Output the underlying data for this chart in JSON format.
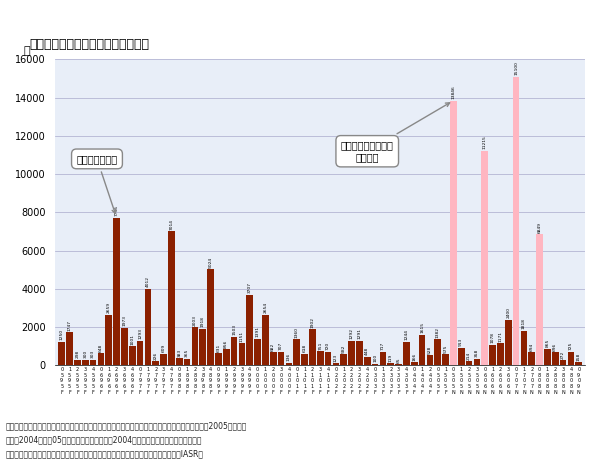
{
  "title": "インフルエンザによる死亡数の推移",
  "ylabel": "人",
  "ylim": [
    0,
    16000
  ],
  "yticks": [
    0,
    2000,
    4000,
    6000,
    8000,
    10000,
    12000,
    14000,
    16000
  ],
  "bar_color_brown": "#8B2000",
  "bar_color_pink": "#FFB6C1",
  "background_color": "#E8EEF8",
  "grid_color": "#AAAACC",
  "note1": "（注）死因別死亡者数は暦年、超過死亡はシーズン年度と時期がずれている（超過死亡については2005年には、",
  "note2": "　　　2004年から05年にかけての冬場を示す2004年シーズンを表示）。最新年概数",
  "note3": "（資料）厚生労働省「人口動態統計」、国立感染症研究所感染症情報センター月報（IASR）",
  "label_brown": "死因別死亡者数",
  "label_pink": "超過死亡概念による\n死亡者数",
  "bars": [
    {
      "value": 1250,
      "type": "brown",
      "show_val": true
    },
    {
      "value": 1747,
      "type": "brown",
      "show_val": true
    },
    {
      "value": 298,
      "type": "brown",
      "show_val": true
    },
    {
      "value": 300,
      "type": "brown",
      "show_val": true
    },
    {
      "value": 303,
      "type": "brown",
      "show_val": true
    },
    {
      "value": 648,
      "type": "brown",
      "show_val": true
    },
    {
      "value": 2659,
      "type": "brown",
      "show_val": true
    },
    {
      "value": 7735,
      "type": "brown",
      "show_val": true
    },
    {
      "value": 1973,
      "type": "brown",
      "show_val": true
    },
    {
      "value": 1001,
      "type": "brown",
      "show_val": true
    },
    {
      "value": 1293,
      "type": "brown",
      "show_val": true
    },
    {
      "value": 4012,
      "type": "brown",
      "show_val": true
    },
    {
      "value": 226,
      "type": "brown",
      "show_val": true
    },
    {
      "value": 609,
      "type": "brown",
      "show_val": true
    },
    {
      "value": 7014,
      "type": "brown",
      "show_val": true
    },
    {
      "value": 383,
      "type": "brown",
      "show_val": true
    },
    {
      "value": 365,
      "type": "brown",
      "show_val": true
    },
    {
      "value": 2003,
      "type": "brown",
      "show_val": true
    },
    {
      "value": 1918,
      "type": "brown",
      "show_val": true
    },
    {
      "value": 5024,
      "type": "brown",
      "show_val": true
    },
    {
      "value": 631,
      "type": "brown",
      "show_val": true
    },
    {
      "value": 856,
      "type": "brown",
      "show_val": true
    },
    {
      "value": 1503,
      "type": "brown",
      "show_val": true
    },
    {
      "value": 1151,
      "type": "brown",
      "show_val": true
    },
    {
      "value": 3707,
      "type": "brown",
      "show_val": true
    },
    {
      "value": 1391,
      "type": "brown",
      "show_val": true
    },
    {
      "value": 2654,
      "type": "brown",
      "show_val": true
    },
    {
      "value": 682,
      "type": "brown",
      "show_val": true
    },
    {
      "value": 707,
      "type": "brown",
      "show_val": true
    },
    {
      "value": 136,
      "type": "brown",
      "show_val": true
    },
    {
      "value": 1360,
      "type": "brown",
      "show_val": true
    },
    {
      "value": 618,
      "type": "brown",
      "show_val": true
    },
    {
      "value": 1902,
      "type": "brown",
      "show_val": true
    },
    {
      "value": 751,
      "type": "brown",
      "show_val": true
    },
    {
      "value": 720,
      "type": "brown",
      "show_val": true
    },
    {
      "value": 123,
      "type": "brown",
      "show_val": true
    },
    {
      "value": 582,
      "type": "brown",
      "show_val": true
    },
    {
      "value": 1292,
      "type": "brown",
      "show_val": true
    },
    {
      "value": 1291,
      "type": "brown",
      "show_val": true
    },
    {
      "value": 448,
      "type": "brown",
      "show_val": true
    },
    {
      "value": 100,
      "type": "brown",
      "show_val": true
    },
    {
      "value": 717,
      "type": "brown",
      "show_val": true
    },
    {
      "value": 119,
      "type": "brown",
      "show_val": true
    },
    {
      "value": 65,
      "type": "brown",
      "show_val": true
    },
    {
      "value": 1244,
      "type": "brown",
      "show_val": true
    },
    {
      "value": 166,
      "type": "brown",
      "show_val": true
    },
    {
      "value": 1615,
      "type": "brown",
      "show_val": true
    },
    {
      "value": 528,
      "type": "brown",
      "show_val": true
    },
    {
      "value": 1382,
      "type": "brown",
      "show_val": true
    },
    {
      "value": 575,
      "type": "brown",
      "show_val": true
    },
    {
      "value": 13846,
      "type": "pink",
      "show_val": true
    },
    {
      "value": 913,
      "type": "brown",
      "show_val": true
    },
    {
      "value": 214,
      "type": "brown",
      "show_val": true
    },
    {
      "value": 358,
      "type": "brown",
      "show_val": true
    },
    {
      "value": 11215,
      "type": "pink",
      "show_val": true
    },
    {
      "value": 1078,
      "type": "brown",
      "show_val": true
    },
    {
      "value": 1171,
      "type": "brown",
      "show_val": true
    },
    {
      "value": 2400,
      "type": "brown",
      "show_val": true
    },
    {
      "value": 15100,
      "type": "pink",
      "show_val": true
    },
    {
      "value": 1818,
      "type": "brown",
      "show_val": true
    },
    {
      "value": 694,
      "type": "brown",
      "show_val": true
    },
    {
      "value": 6849,
      "type": "pink",
      "show_val": true
    },
    {
      "value": 865,
      "type": "brown",
      "show_val": true
    },
    {
      "value": 696,
      "type": "brown",
      "show_val": true
    },
    {
      "value": 272,
      "type": "brown",
      "show_val": true
    },
    {
      "value": 725,
      "type": "brown",
      "show_val": true
    },
    {
      "value": 158,
      "type": "brown",
      "show_val": true
    }
  ],
  "xtick_rows": [
    [
      "0",
      "1",
      "2",
      "3",
      "4",
      "0",
      "1",
      "2",
      "3",
      "4",
      "0",
      "1",
      "2",
      "3",
      "4",
      "0",
      "1",
      "2",
      "3",
      "4",
      "0",
      "1",
      "2",
      "3",
      "4",
      "0",
      "1",
      "2",
      "3",
      "4",
      "0",
      "1",
      "2",
      "3",
      "4",
      "0",
      "1",
      "2",
      "3",
      "4",
      "0",
      "1",
      "2",
      "3",
      "4",
      "0",
      "1",
      "2",
      "0",
      "1",
      "0",
      "1",
      "2",
      "3",
      "0",
      "1",
      "2",
      "3",
      "0",
      "1",
      "2",
      "0",
      "1",
      "2",
      "3",
      "4",
      "0"
    ],
    [
      "5",
      "5",
      "5",
      "5",
      "5",
      "6",
      "6",
      "6",
      "6",
      "6",
      "7",
      "7",
      "7",
      "7",
      "7",
      "8",
      "8",
      "8",
      "8",
      "8",
      "9",
      "9",
      "9",
      "9",
      "9",
      "0",
      "0",
      "0",
      "0",
      "0",
      "1",
      "1",
      "1",
      "1",
      "1",
      "2",
      "2",
      "2",
      "2",
      "2",
      "3",
      "3",
      "3",
      "3",
      "3",
      "4",
      "4",
      "4",
      "5",
      "5",
      "5",
      "5",
      "5",
      "5",
      "6",
      "6",
      "6",
      "6",
      "7",
      "7",
      "7",
      "8",
      "8",
      "8",
      "8",
      "8",
      "9"
    ],
    [
      "9",
      "9",
      "9",
      "9",
      "9",
      "9",
      "9",
      "9",
      "9",
      "9",
      "9",
      "9",
      "9",
      "9",
      "9",
      "9",
      "9",
      "9",
      "9",
      "9",
      "9",
      "9",
      "9",
      "9",
      "9",
      "0",
      "0",
      "0",
      "0",
      "0",
      "0",
      "0",
      "0",
      "0",
      "0",
      "0",
      "0",
      "0",
      "0",
      "0",
      "0",
      "0",
      "0",
      "0",
      "0",
      "0",
      "0",
      "0",
      "0",
      "0",
      "0",
      "0",
      "0",
      "0",
      "0",
      "0",
      "0",
      "0",
      "0",
      "0",
      "0",
      "0",
      "0",
      "0",
      "0",
      "0",
      "0"
    ],
    [
      "5",
      "5",
      "5",
      "5",
      "5",
      "6",
      "6",
      "6",
      "6",
      "6",
      "7",
      "7",
      "7",
      "7",
      "7",
      "8",
      "8",
      "8",
      "8",
      "8",
      "9",
      "9",
      "9",
      "9",
      "9",
      "0",
      "0",
      "0",
      "0",
      "0",
      "1",
      "1",
      "1",
      "1",
      "1",
      "2",
      "2",
      "2",
      "2",
      "2",
      "3",
      "3",
      "3",
      "3",
      "3",
      "4",
      "4",
      "4",
      "5",
      "5",
      "5",
      "5",
      "5",
      "5",
      "6",
      "6",
      "6",
      "6",
      "7",
      "7",
      "7",
      "8",
      "8",
      "8",
      "8",
      "8",
      "9"
    ],
    [
      "F",
      "F",
      "F",
      "F",
      "F",
      "F",
      "F",
      "F",
      "F",
      "F",
      "F",
      "F",
      "F",
      "F",
      "F",
      "F",
      "F",
      "F",
      "F",
      "F",
      "F",
      "F",
      "F",
      "F",
      "F",
      "F",
      "F",
      "F",
      "F",
      "F",
      "F",
      "F",
      "F",
      "F",
      "F",
      "F",
      "F",
      "F",
      "F",
      "F",
      "F",
      "F",
      "F",
      "F",
      "F",
      "F",
      "F",
      "F",
      "F",
      "F",
      "N",
      "N",
      "N",
      "N",
      "N",
      "N",
      "N",
      "N",
      "N",
      "N",
      "N",
      "N",
      "N",
      "N",
      "N",
      "N",
      "N"
    ]
  ]
}
